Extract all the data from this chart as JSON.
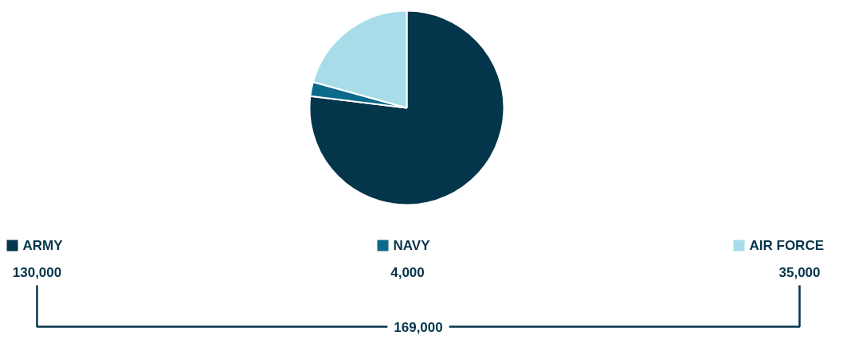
{
  "chart_data": {
    "type": "pie",
    "categories": [
      "ARMY",
      "NAVY",
      "AIR FORCE"
    ],
    "values": [
      130000,
      4000,
      35000
    ],
    "colors": [
      "#03354b",
      "#0b6a8a",
      "#a8dce9"
    ],
    "value_labels": [
      "130,000",
      "4,000",
      "35,000"
    ],
    "legend": "bottom",
    "annotations": [
      "169,000"
    ]
  }
}
